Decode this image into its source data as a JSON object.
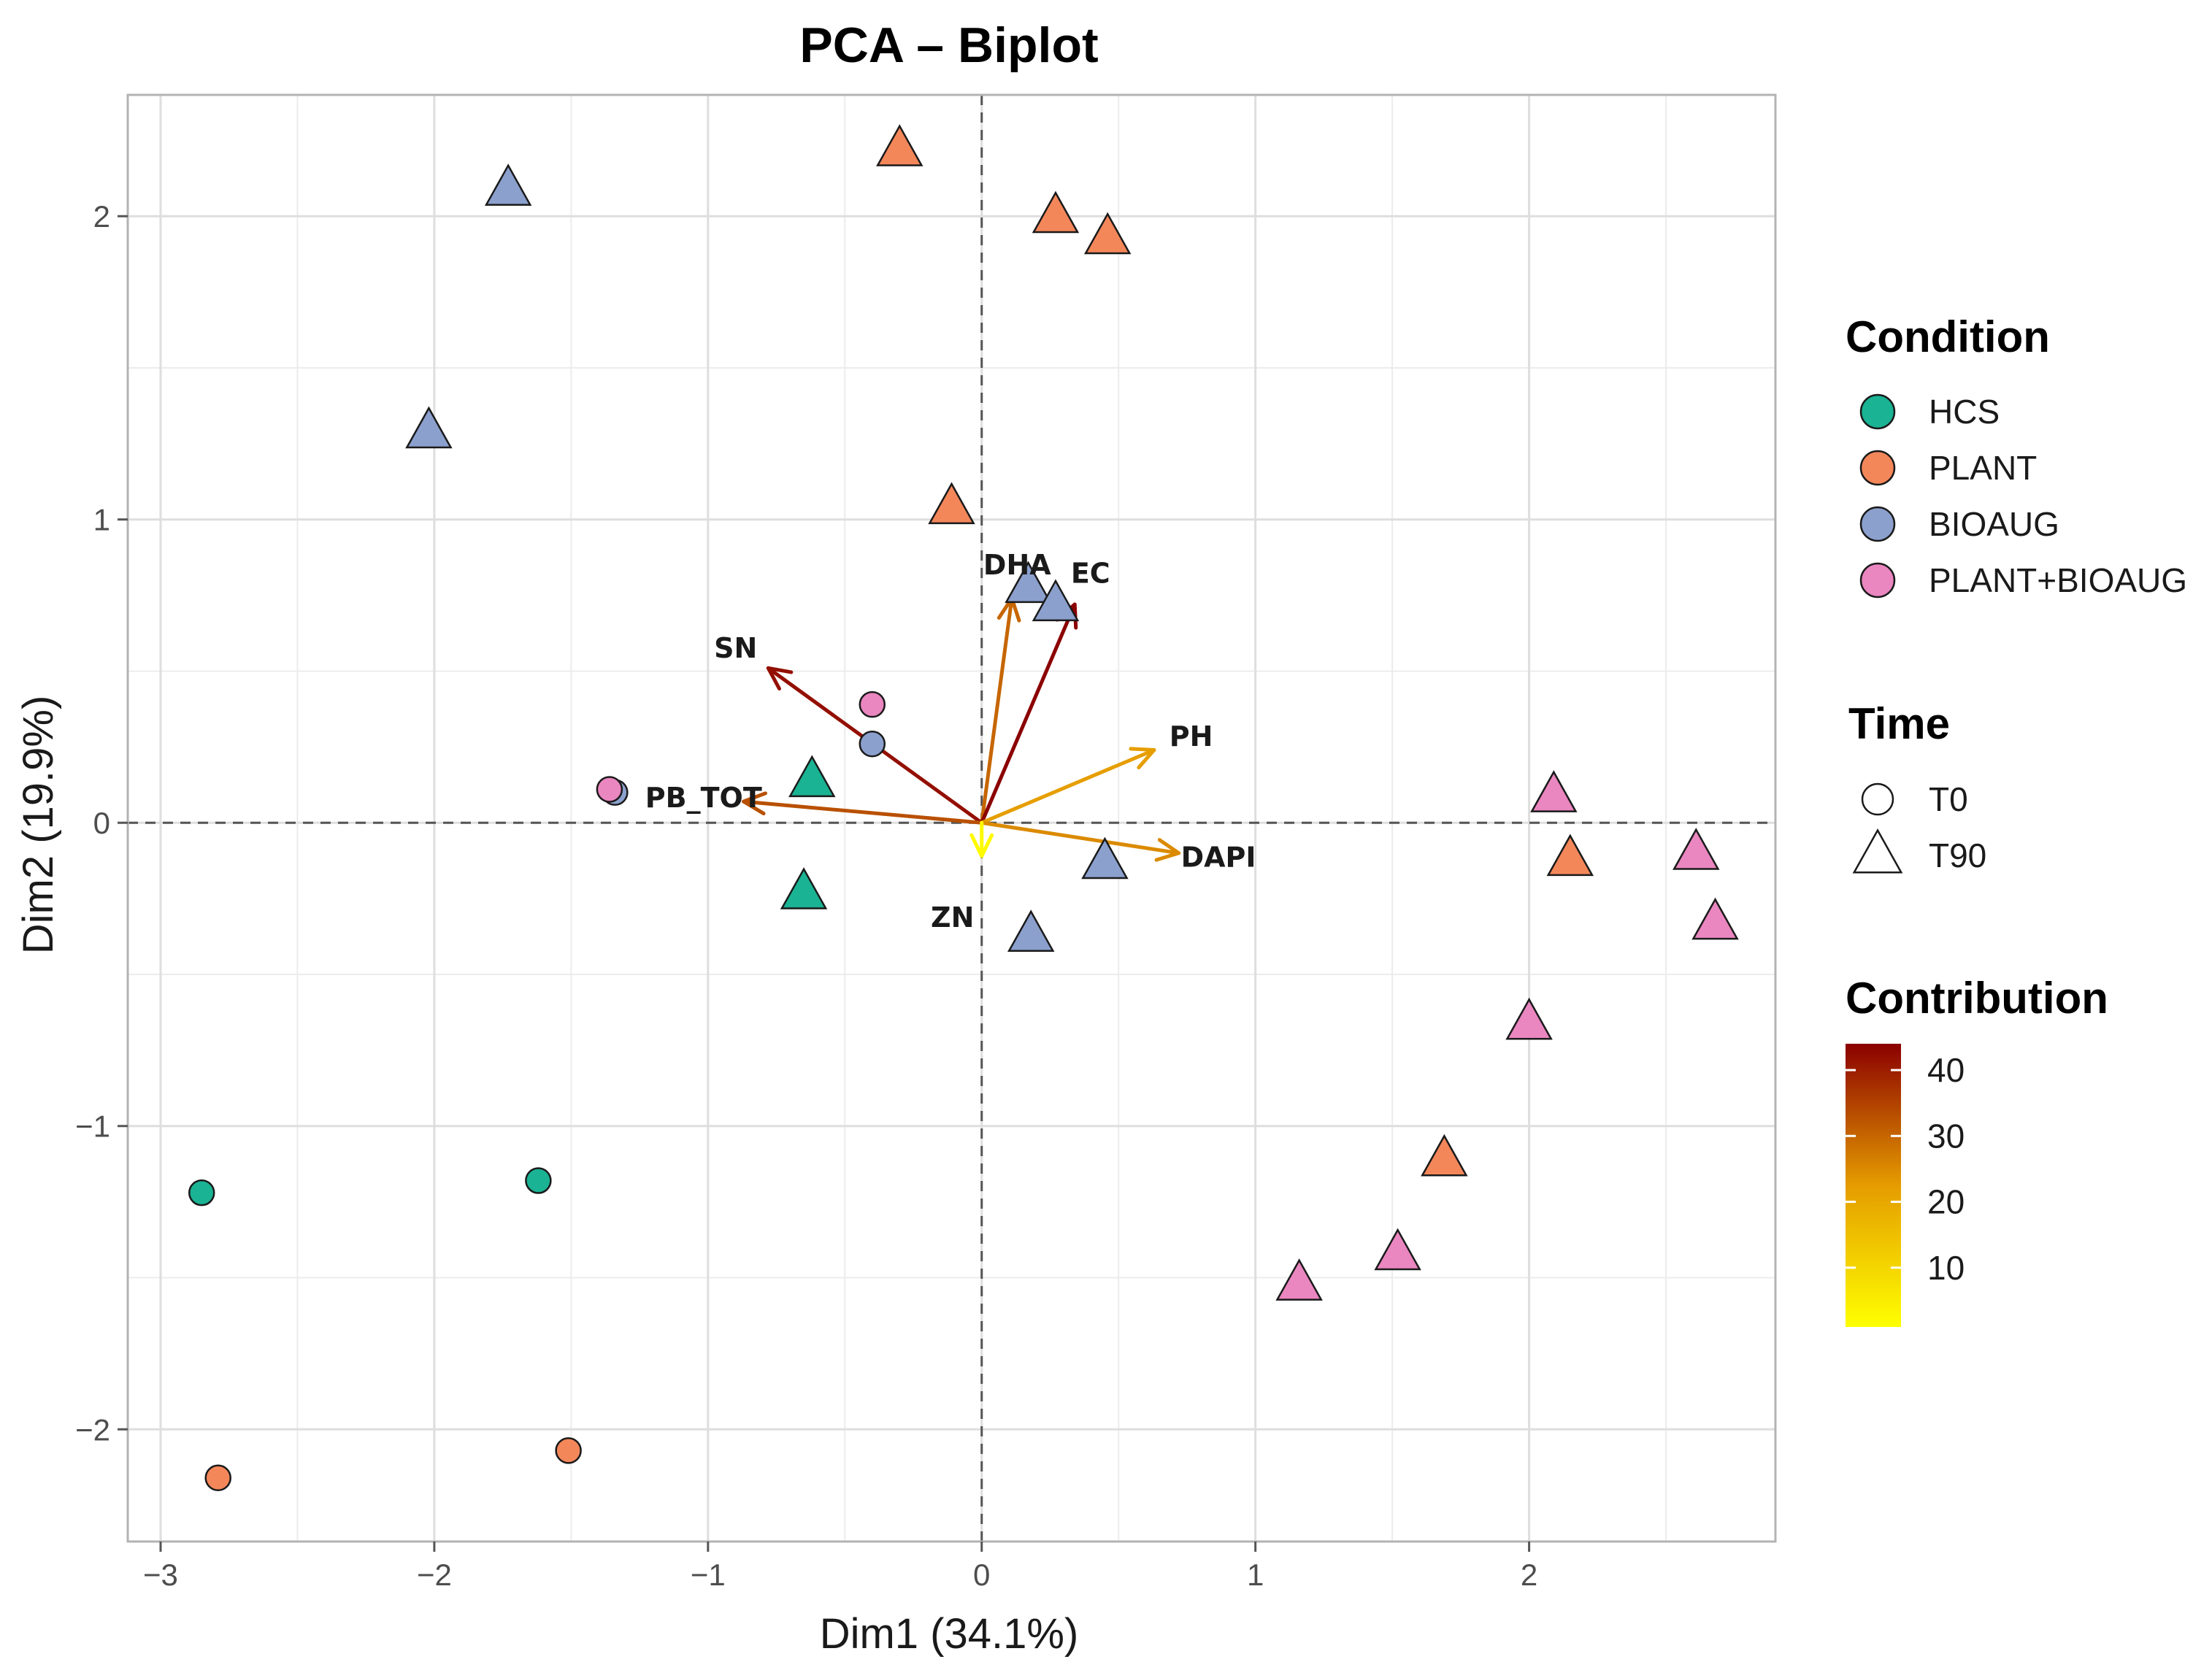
{
  "chart_data": {
    "type": "scatter",
    "title": "PCA – Biplot",
    "xlabel": "Dim1 (34.1%)",
    "ylabel": "Dim2 (19.9%)",
    "xlim": [
      -3.12,
      2.9
    ],
    "ylim": [
      -2.37,
      2.4
    ],
    "x_ticks": [
      -3,
      -2,
      -1,
      0,
      1,
      2
    ],
    "x_tick_labels": [
      "−3",
      "−2",
      "−1",
      "0",
      "1",
      "2"
    ],
    "y_ticks": [
      -2,
      -1,
      0,
      1,
      2
    ],
    "y_tick_labels": [
      "−2",
      "−1",
      "0",
      "1",
      "2"
    ],
    "grid": true,
    "conditions": [
      {
        "name": "HCS",
        "color": "#1ab394"
      },
      {
        "name": "PLANT",
        "color": "#f4875a"
      },
      {
        "name": "BIOAUG",
        "color": "#8ba0cd"
      },
      {
        "name": "PLANT+BIOAUG",
        "color": "#ea86c0"
      }
    ],
    "times": [
      {
        "name": "T0",
        "shape": "circle"
      },
      {
        "name": "T90",
        "shape": "triangle"
      }
    ],
    "points": [
      {
        "x": -2.85,
        "y": -1.22,
        "condition": "HCS",
        "time": "T0"
      },
      {
        "x": -1.62,
        "y": -1.18,
        "condition": "HCS",
        "time": "T0"
      },
      {
        "x": -0.62,
        "y": 0.14,
        "condition": "HCS",
        "time": "T90"
      },
      {
        "x": -0.65,
        "y": -0.23,
        "condition": "HCS",
        "time": "T90"
      },
      {
        "x": -2.79,
        "y": -2.16,
        "condition": "PLANT",
        "time": "T0"
      },
      {
        "x": -1.51,
        "y": -2.07,
        "condition": "PLANT",
        "time": "T0"
      },
      {
        "x": -0.3,
        "y": 2.22,
        "condition": "PLANT",
        "time": "T90"
      },
      {
        "x": 0.27,
        "y": 2.0,
        "condition": "PLANT",
        "time": "T90"
      },
      {
        "x": 0.46,
        "y": 1.93,
        "condition": "PLANT",
        "time": "T90"
      },
      {
        "x": -0.11,
        "y": 1.04,
        "condition": "PLANT",
        "time": "T90"
      },
      {
        "x": 2.15,
        "y": -0.12,
        "condition": "PLANT",
        "time": "T90"
      },
      {
        "x": 1.69,
        "y": -1.11,
        "condition": "PLANT",
        "time": "T90"
      },
      {
        "x": -1.34,
        "y": 0.1,
        "condition": "BIOAUG",
        "time": "T0"
      },
      {
        "x": -0.4,
        "y": 0.26,
        "condition": "BIOAUG",
        "time": "T0"
      },
      {
        "x": -1.73,
        "y": 2.09,
        "condition": "BIOAUG",
        "time": "T90"
      },
      {
        "x": -2.02,
        "y": 1.29,
        "condition": "BIOAUG",
        "time": "T90"
      },
      {
        "x": 0.17,
        "y": 0.78,
        "condition": "BIOAUG",
        "time": "T90"
      },
      {
        "x": 0.27,
        "y": 0.72,
        "condition": "BIOAUG",
        "time": "T90"
      },
      {
        "x": 0.45,
        "y": -0.13,
        "condition": "BIOAUG",
        "time": "T90"
      },
      {
        "x": 0.18,
        "y": -0.37,
        "condition": "BIOAUG",
        "time": "T90"
      },
      {
        "x": -1.36,
        "y": 0.11,
        "condition": "PLANT+BIOAUG",
        "time": "T0"
      },
      {
        "x": -0.4,
        "y": 0.39,
        "condition": "PLANT+BIOAUG",
        "time": "T0"
      },
      {
        "x": 2.09,
        "y": 0.09,
        "condition": "PLANT+BIOAUG",
        "time": "T90"
      },
      {
        "x": 2.61,
        "y": -0.1,
        "condition": "PLANT+BIOAUG",
        "time": "T90"
      },
      {
        "x": 2.68,
        "y": -0.33,
        "condition": "PLANT+BIOAUG",
        "time": "T90"
      },
      {
        "x": 2.0,
        "y": -0.66,
        "condition": "PLANT+BIOAUG",
        "time": "T90"
      },
      {
        "x": 1.52,
        "y": -1.42,
        "condition": "PLANT+BIOAUG",
        "time": "T90"
      },
      {
        "x": 1.16,
        "y": -1.52,
        "condition": "PLANT+BIOAUG",
        "time": "T90"
      }
    ],
    "variables": [
      {
        "name": "DHA",
        "x": 0.11,
        "y": 0.74,
        "contribution": 30
      },
      {
        "name": "EC",
        "x": 0.34,
        "y": 0.72,
        "contribution": 44
      },
      {
        "name": "SN",
        "x": -0.78,
        "y": 0.51,
        "contribution": 42
      },
      {
        "name": "PB_TOT",
        "x": -0.87,
        "y": 0.07,
        "contribution": 33
      },
      {
        "name": "PH",
        "x": 0.63,
        "y": 0.24,
        "contribution": 22
      },
      {
        "name": "DAPI",
        "x": 0.72,
        "y": -0.1,
        "contribution": 25
      },
      {
        "name": "ZN",
        "x": 0.0,
        "y": -0.11,
        "contribution": 2
      }
    ],
    "legend": {
      "condition_title": "Condition",
      "time_title": "Time",
      "contribution_title": "Contribution",
      "contribution_range": [
        1,
        44
      ],
      "contribution_ticks": [
        10,
        20,
        30,
        40
      ],
      "contribution_tick_labels": [
        "10",
        "20",
        "30",
        "40"
      ],
      "gradient_colors": [
        "#ffff00",
        "#e59c00",
        "#8b0000"
      ],
      "placement": "right"
    }
  }
}
